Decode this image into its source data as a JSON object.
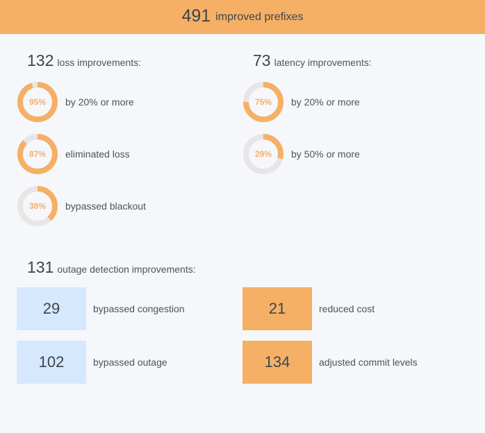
{
  "colors": {
    "header_bg": "#f5b066",
    "accent": "#f5b066",
    "track": "#e6e6e6",
    "box_blue": "#d6e8fd",
    "box_orange": "#f5b066",
    "page_bg": "#f5f7fb"
  },
  "header": {
    "count": "491",
    "label": "improved prefixes"
  },
  "loss": {
    "count": "132",
    "label": "loss improvements:",
    "items": [
      {
        "percent": 95,
        "percent_label": "95%",
        "label": "by 20% or more"
      },
      {
        "percent": 87,
        "percent_label": "87%",
        "label": "eliminated loss"
      },
      {
        "percent": 38,
        "percent_label": "38%",
        "label": "bypassed blackout"
      }
    ]
  },
  "latency": {
    "count": "73",
    "label": "latency improvements:",
    "items": [
      {
        "percent": 75,
        "percent_label": "75%",
        "label": "by 20% or more"
      },
      {
        "percent": 29,
        "percent_label": "29%",
        "label": "by 50% or more"
      }
    ]
  },
  "outage": {
    "count": "131",
    "label": "outage detection improvements:",
    "items": [
      {
        "value": "29",
        "label": "bypassed congestion",
        "style": "blue"
      },
      {
        "value": "21",
        "label": "reduced cost",
        "style": "orange"
      },
      {
        "value": "102",
        "label": "bypassed outage",
        "style": "blue"
      },
      {
        "value": "134",
        "label": "adjusted commit levels",
        "style": "orange"
      }
    ]
  }
}
